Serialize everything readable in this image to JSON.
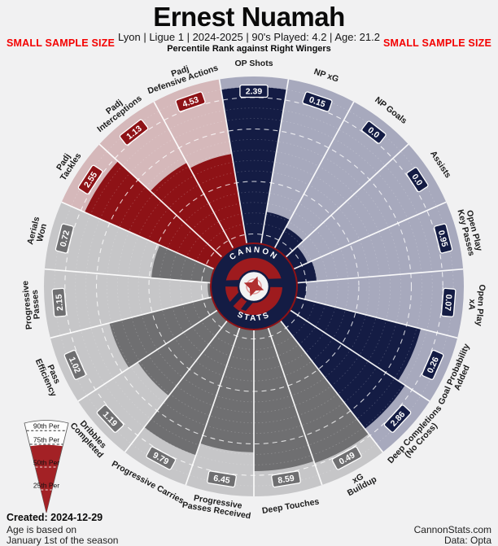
{
  "header": {
    "title": "Ernest Nuamah",
    "subtitle": "Lyon  | Ligue 1 | 2024-2025 | 90's Played: 4.2 | Age: 21.2",
    "tagline": "Percentile Rank against Right Wingers",
    "sample_warning": "SMALL SAMPLE SIZE"
  },
  "footer": {
    "created": "Created: 2024-12-29",
    "age_note_line1": "Age is based on",
    "age_note_line2": "January 1st of the season",
    "site": "CannonStats.com",
    "data_source": "Data: Opta"
  },
  "logo": {
    "top": "CANNON",
    "bottom": "STATS"
  },
  "legend": {
    "levels": [
      "90th Per",
      "75th Per",
      "50th Per",
      "25th Per"
    ]
  },
  "chart_data": {
    "type": "pizza-percentile",
    "title": "Percentile Rank against Right Wingers",
    "groups": {
      "attacking": {
        "fill": "#141c44",
        "bg": "#a7a9bd"
      },
      "possession": {
        "fill": "#6f6f71",
        "bg": "#c6c6c8"
      },
      "defending": {
        "fill": "#8e1216",
        "bg": "#d5b8ba"
      }
    },
    "slices": [
      {
        "label": "OP Shots",
        "value": "2.39",
        "percentile": 95,
        "group": "attacking"
      },
      {
        "label": "NP xG",
        "value": "0.15",
        "percentile": 36,
        "group": "attacking"
      },
      {
        "label": "NP Goals",
        "value": "0.0",
        "percentile": 32,
        "group": "attacking"
      },
      {
        "label": "Assists",
        "value": "0.0",
        "percentile": 28,
        "group": "attacking"
      },
      {
        "label": "Open Play|Key Passes",
        "value": "0.95",
        "percentile": 30,
        "group": "attacking"
      },
      {
        "label": "Open Play|xA",
        "value": "0.07",
        "percentile": 25,
        "group": "attacking"
      },
      {
        "label": "Goal Probability|Added",
        "value": "0.26",
        "percentile": 82,
        "group": "attacking"
      },
      {
        "label": "Deep Completions|(No Cross)",
        "value": "2.86",
        "percentile": 86,
        "group": "attacking"
      },
      {
        "label": "xG|Buildup",
        "value": "0.49",
        "percentile": 89,
        "group": "possession"
      },
      {
        "label": "Deep Touches",
        "value": "8.59",
        "percentile": 88,
        "group": "possession"
      },
      {
        "label": "Progressive|Passes Received",
        "value": "6.45",
        "percentile": 79,
        "group": "possession"
      },
      {
        "label": "Progressive Carries",
        "value": "9.79",
        "percentile": 85,
        "group": "possession"
      },
      {
        "label": "Dribbles|Completed",
        "value": "1.19",
        "percentile": 66,
        "group": "possession"
      },
      {
        "label": "Pass|Efficiency",
        "value": "1.02",
        "percentile": 71,
        "group": "possession"
      },
      {
        "label": "Progressive|Passes",
        "value": "2.15",
        "percentile": 22,
        "group": "possession"
      },
      {
        "label": "Aerials|Won",
        "value": "0.72",
        "percentile": 49,
        "group": "possession"
      },
      {
        "label": "Padj|Tackles",
        "value": "2.55",
        "percentile": 88,
        "group": "defending"
      },
      {
        "label": "Padj|Interceptions",
        "value": "1.13",
        "percentile": 67,
        "group": "defending"
      },
      {
        "label": "Padj|Defensive Actions",
        "value": "4.53",
        "percentile": 64,
        "group": "defending"
      }
    ],
    "rings_major": [
      25,
      50,
      75,
      90
    ],
    "rings_minor_step": 5,
    "axis_range": [
      0,
      100
    ],
    "legend_levels": [
      "90th Per",
      "75th Per",
      "50th Per",
      "25th Per"
    ]
  }
}
